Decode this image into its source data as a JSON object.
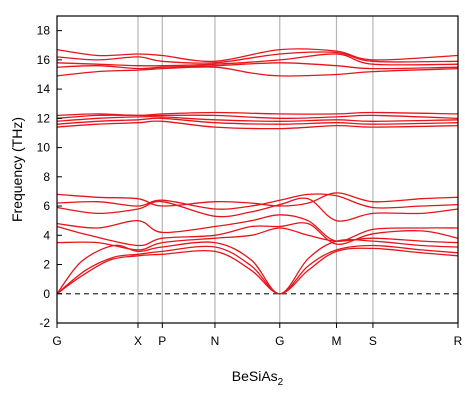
{
  "chart_data": {
    "type": "line",
    "xlabel_main": "BeSiAs",
    "xlabel_sub": "2",
    "ylabel": "Frequency (THz)",
    "ylim": [
      -2,
      19
    ],
    "yticks": [
      -2,
      0,
      2,
      4,
      6,
      8,
      10,
      12,
      14,
      16,
      18
    ],
    "kpoints": [
      {
        "label": "G",
        "x": 0.0
      },
      {
        "label": "X",
        "x": 1.0
      },
      {
        "label": "P",
        "x": 1.3
      },
      {
        "label": "N",
        "x": 1.95
      },
      {
        "label": "G",
        "x": 2.75
      },
      {
        "label": "M",
        "x": 3.45
      },
      {
        "label": "S",
        "x": 3.9
      },
      {
        "label": "R",
        "x": 4.95
      }
    ],
    "zero_line": 0,
    "grid": "vertical lines at high-symmetry points",
    "line_color": "#e8141c",
    "series": [
      {
        "values": [
          [
            0,
            0
          ],
          [
            0.3,
            1.2
          ],
          [
            0.65,
            2.3
          ],
          [
            1.0,
            2.6
          ],
          [
            1.3,
            2.7
          ],
          [
            1.95,
            2.9
          ],
          [
            2.4,
            1.6
          ],
          [
            2.75,
            0
          ],
          [
            3.1,
            1.6
          ],
          [
            3.45,
            2.9
          ],
          [
            3.9,
            3.1
          ],
          [
            4.5,
            2.8
          ],
          [
            4.95,
            2.6
          ]
        ]
      },
      {
        "values": [
          [
            0,
            0
          ],
          [
            0.35,
            1.6
          ],
          [
            0.7,
            2.5
          ],
          [
            1.0,
            2.7
          ],
          [
            1.3,
            2.9
          ],
          [
            1.95,
            3.2
          ],
          [
            2.4,
            1.9
          ],
          [
            2.75,
            0
          ],
          [
            3.1,
            1.9
          ],
          [
            3.45,
            3.0
          ],
          [
            3.9,
            3.3
          ],
          [
            4.5,
            3.0
          ],
          [
            4.95,
            2.8
          ]
        ]
      },
      {
        "values": [
          [
            0,
            0
          ],
          [
            0.3,
            2.2
          ],
          [
            0.7,
            3.3
          ],
          [
            1.0,
            2.9
          ],
          [
            1.3,
            3.2
          ],
          [
            1.95,
            3.5
          ],
          [
            2.4,
            2.3
          ],
          [
            2.75,
            0
          ],
          [
            3.1,
            2.4
          ],
          [
            3.45,
            3.6
          ],
          [
            3.9,
            3.6
          ],
          [
            4.5,
            3.3
          ],
          [
            4.95,
            3.2
          ]
        ]
      },
      {
        "values": [
          [
            0,
            3.5
          ],
          [
            0.5,
            3.5
          ],
          [
            1.0,
            3.0
          ],
          [
            1.3,
            3.5
          ],
          [
            1.95,
            3.8
          ],
          [
            2.4,
            4.0
          ],
          [
            2.75,
            4.5
          ],
          [
            3.1,
            4.0
          ],
          [
            3.45,
            3.6
          ],
          [
            3.9,
            3.8
          ],
          [
            4.5,
            3.6
          ],
          [
            4.95,
            3.5
          ]
        ]
      },
      {
        "values": [
          [
            0,
            4.6
          ],
          [
            0.4,
            4.0
          ],
          [
            1.0,
            3.3
          ],
          [
            1.3,
            3.8
          ],
          [
            1.95,
            4.0
          ],
          [
            2.4,
            4.6
          ],
          [
            2.75,
            4.6
          ],
          [
            3.1,
            4.8
          ],
          [
            3.45,
            3.4
          ],
          [
            3.9,
            4.1
          ],
          [
            4.5,
            4.3
          ],
          [
            4.95,
            3.8
          ]
        ]
      },
      {
        "values": [
          [
            0,
            4.8
          ],
          [
            0.5,
            4.5
          ],
          [
            1.0,
            5.0
          ],
          [
            1.3,
            4.2
          ],
          [
            1.95,
            4.6
          ],
          [
            2.4,
            5.0
          ],
          [
            2.75,
            5.4
          ],
          [
            3.1,
            5.0
          ],
          [
            3.45,
            3.6
          ],
          [
            3.9,
            4.4
          ],
          [
            4.5,
            4.5
          ],
          [
            4.95,
            4.5
          ]
        ]
      },
      {
        "values": [
          [
            0,
            5.9
          ],
          [
            0.5,
            5.5
          ],
          [
            1.0,
            5.8
          ],
          [
            1.3,
            6.3
          ],
          [
            1.95,
            5.3
          ],
          [
            2.4,
            5.6
          ],
          [
            2.75,
            6.1
          ],
          [
            3.1,
            6.5
          ],
          [
            3.45,
            5.0
          ],
          [
            3.9,
            5.5
          ],
          [
            4.5,
            5.5
          ],
          [
            4.95,
            5.8
          ]
        ]
      },
      {
        "values": [
          [
            0,
            6.2
          ],
          [
            0.5,
            6.3
          ],
          [
            1.0,
            6.0
          ],
          [
            1.3,
            6.4
          ],
          [
            1.95,
            5.8
          ],
          [
            2.4,
            6.0
          ],
          [
            2.75,
            6.4
          ],
          [
            3.1,
            6.8
          ],
          [
            3.45,
            6.7
          ],
          [
            3.9,
            5.9
          ],
          [
            4.5,
            6.0
          ],
          [
            4.95,
            6.1
          ]
        ]
      },
      {
        "values": [
          [
            0,
            6.8
          ],
          [
            0.5,
            6.6
          ],
          [
            1.0,
            6.5
          ],
          [
            1.3,
            6.0
          ],
          [
            1.95,
            6.3
          ],
          [
            2.4,
            6.2
          ],
          [
            2.75,
            6.0
          ],
          [
            3.1,
            6.2
          ],
          [
            3.45,
            6.9
          ],
          [
            3.9,
            6.3
          ],
          [
            4.5,
            6.5
          ],
          [
            4.95,
            6.6
          ]
        ]
      },
      {
        "values": [
          [
            0,
            11.4
          ],
          [
            0.5,
            11.6
          ],
          [
            1.0,
            11.7
          ],
          [
            1.3,
            11.8
          ],
          [
            1.95,
            11.4
          ],
          [
            2.75,
            11.3
          ],
          [
            3.45,
            11.5
          ],
          [
            3.9,
            11.4
          ],
          [
            4.95,
            11.5
          ]
        ]
      },
      {
        "values": [
          [
            0,
            11.6
          ],
          [
            0.5,
            11.8
          ],
          [
            1.0,
            11.9
          ],
          [
            1.3,
            12.0
          ],
          [
            1.95,
            11.7
          ],
          [
            2.75,
            11.6
          ],
          [
            3.45,
            11.7
          ],
          [
            3.9,
            11.6
          ],
          [
            4.95,
            11.7
          ]
        ]
      },
      {
        "values": [
          [
            0,
            11.8
          ],
          [
            0.5,
            12.0
          ],
          [
            1.0,
            12.1
          ],
          [
            1.3,
            12.1
          ],
          [
            1.95,
            11.9
          ],
          [
            2.75,
            11.8
          ],
          [
            3.45,
            11.9
          ],
          [
            3.9,
            11.8
          ],
          [
            4.95,
            11.9
          ]
        ]
      },
      {
        "values": [
          [
            0,
            12.0
          ],
          [
            0.5,
            12.2
          ],
          [
            1.0,
            12.2
          ],
          [
            1.3,
            12.2
          ],
          [
            1.95,
            12.2
          ],
          [
            2.75,
            12.0
          ],
          [
            3.45,
            12.1
          ],
          [
            3.9,
            12.2
          ],
          [
            4.95,
            12.0
          ]
        ]
      },
      {
        "values": [
          [
            0,
            12.2
          ],
          [
            0.5,
            12.3
          ],
          [
            1.0,
            12.2
          ],
          [
            1.3,
            12.3
          ],
          [
            1.95,
            12.4
          ],
          [
            2.75,
            12.3
          ],
          [
            3.45,
            12.3
          ],
          [
            3.9,
            12.4
          ],
          [
            4.95,
            12.3
          ]
        ]
      },
      {
        "values": [
          [
            0,
            14.9
          ],
          [
            0.5,
            15.2
          ],
          [
            1.0,
            15.3
          ],
          [
            1.3,
            15.4
          ],
          [
            1.95,
            15.5
          ],
          [
            2.4,
            15.1
          ],
          [
            2.75,
            14.9
          ],
          [
            3.45,
            15.0
          ],
          [
            3.9,
            15.2
          ],
          [
            4.95,
            15.4
          ]
        ]
      },
      {
        "values": [
          [
            0,
            15.5
          ],
          [
            0.5,
            15.6
          ],
          [
            1.0,
            15.4
          ],
          [
            1.3,
            15.5
          ],
          [
            1.95,
            15.6
          ],
          [
            2.75,
            15.8
          ],
          [
            3.45,
            15.6
          ],
          [
            3.9,
            15.4
          ],
          [
            4.95,
            15.5
          ]
        ]
      },
      {
        "values": [
          [
            0,
            15.8
          ],
          [
            0.5,
            15.7
          ],
          [
            1.0,
            15.6
          ],
          [
            1.3,
            15.6
          ],
          [
            1.95,
            15.7
          ],
          [
            2.75,
            16.0
          ],
          [
            3.45,
            16.4
          ],
          [
            3.9,
            15.7
          ],
          [
            4.95,
            15.7
          ]
        ]
      },
      {
        "values": [
          [
            0,
            16.2
          ],
          [
            0.5,
            16.0
          ],
          [
            1.0,
            16.2
          ],
          [
            1.3,
            15.9
          ],
          [
            1.95,
            15.8
          ],
          [
            2.75,
            16.4
          ],
          [
            3.45,
            16.5
          ],
          [
            3.9,
            15.9
          ],
          [
            4.95,
            15.9
          ]
        ]
      },
      {
        "values": [
          [
            0,
            16.7
          ],
          [
            0.5,
            16.3
          ],
          [
            1.0,
            16.4
          ],
          [
            1.3,
            16.3
          ],
          [
            1.95,
            15.9
          ],
          [
            2.75,
            16.7
          ],
          [
            3.45,
            16.6
          ],
          [
            3.9,
            16.0
          ],
          [
            4.95,
            16.3
          ]
        ]
      }
    ]
  }
}
